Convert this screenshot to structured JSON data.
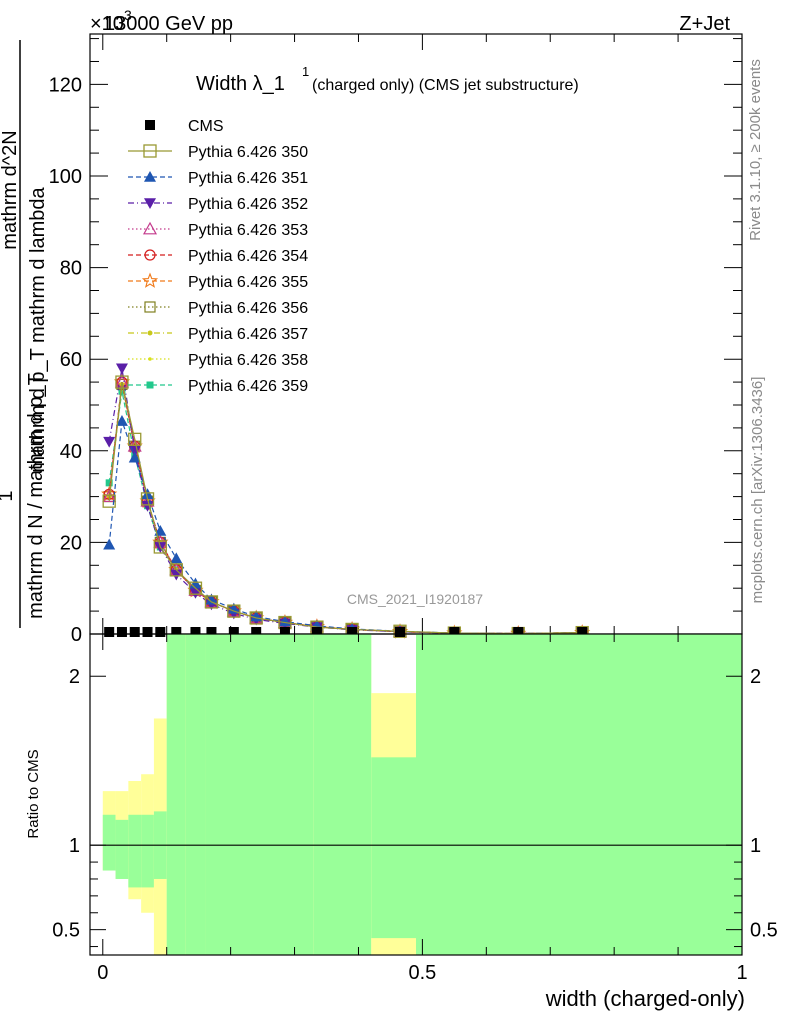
{
  "header": {
    "energy": "13000 GeV pp",
    "process": "Z+Jet",
    "exponent": "×10",
    "exponent_power": "3"
  },
  "side_labels": {
    "rivet": "Rivet 3.1.10, ≥ 200k events",
    "mcplots": "mcplots.cern.ch [arXiv:1306.3436]"
  },
  "watermark": "CMS_2021_I1920187",
  "colors": {
    "band_inner": "#99ff99",
    "band_outer": "#ffff99",
    "s350": "#999933",
    "s351": "#1f56b2",
    "s352": "#5a1fa8",
    "s353": "#c43a8c",
    "s354": "#d41f1f",
    "s355": "#f07a1a",
    "s356": "#808020",
    "s357": "#c8c81a",
    "s358": "#d8e01a",
    "s359": "#22c88c"
  },
  "chart_data": [
    {
      "type": "line",
      "title": "Width λ_1",
      "title_sup": "1",
      "title_suffix": "(charged only) (CMS jet substructure)",
      "ylabel": {
        "prefix": "1",
        "denominator": "mathrm d N / mathrm d p_T",
        "numerator": "mathrm d^2N",
        "denominator_suffix": "mathrm d p_T mathrm d lambda"
      },
      "xlim": [
        -0.02,
        1.0
      ],
      "ylim": [
        0,
        131
      ],
      "yticks": [
        0,
        20,
        40,
        60,
        80,
        100,
        120
      ],
      "y_scale_note": "values ×10^3 shown as displayed",
      "legend_position": "top-left",
      "x": [
        0.01,
        0.03,
        0.05,
        0.07,
        0.09,
        0.115,
        0.145,
        0.17,
        0.205,
        0.24,
        0.285,
        0.335,
        0.39,
        0.465,
        0.55,
        0.65,
        0.75
      ],
      "series": [
        {
          "name": "CMS",
          "marker": "square-filled",
          "color": "#000000",
          "values": [
            0.4,
            0.4,
            0.4,
            0.4,
            0.4,
            0.4,
            0.4,
            0.4,
            0.4,
            0.4,
            0.3,
            0.3,
            0.2,
            0.1,
            0.05,
            0.05,
            0.05
          ]
        },
        {
          "name": "Pythia 6.426 350",
          "marker": "square-open",
          "dash": "solid",
          "colorKey": "s350",
          "values": [
            29,
            55,
            42.5,
            29.5,
            19,
            14,
            10,
            7,
            5,
            3.5,
            2.5,
            1.5,
            1.0,
            0.6,
            0.2,
            0.1,
            0.3
          ]
        },
        {
          "name": "Pythia 6.426 351",
          "marker": "triangle-up-filled",
          "dash": "dash",
          "colorKey": "s351",
          "values": [
            19.5,
            46.5,
            38.5,
            30.5,
            22.5,
            16.5,
            11.0,
            7.5,
            5.5,
            3.8,
            2.7,
            1.8,
            1.1,
            0.6,
            0.2,
            0.1,
            0.3
          ]
        },
        {
          "name": "Pythia 6.426 352",
          "marker": "triangle-down-filled",
          "dash": "dashdot",
          "colorKey": "s352",
          "values": [
            42,
            58,
            40,
            28,
            19,
            13,
            9,
            6.5,
            4.5,
            3.2,
            2.3,
            1.5,
            0.9,
            0.5,
            0.2,
            0.1,
            0.3
          ]
        },
        {
          "name": "Pythia 6.426 353",
          "marker": "triangle-up-open",
          "dash": "dot",
          "colorKey": "s353",
          "values": [
            30,
            55,
            41,
            29,
            20,
            14,
            9.5,
            7,
            5,
            3.5,
            2.5,
            1.6,
            1.0,
            0.5,
            0.2,
            0.1,
            0.3
          ]
        },
        {
          "name": "Pythia 6.426 354",
          "marker": "circle-open",
          "dash": "dash",
          "colorKey": "s354",
          "values": [
            30.5,
            55,
            41,
            29,
            20,
            14,
            9.5,
            7,
            5,
            3.5,
            2.5,
            1.6,
            1.0,
            0.5,
            0.2,
            0.1,
            0.3
          ]
        },
        {
          "name": "Pythia 6.426 355",
          "marker": "star-open",
          "dash": "dash",
          "colorKey": "s355",
          "values": [
            30.5,
            55,
            41,
            29,
            20,
            14,
            9.5,
            7,
            5,
            3.5,
            2.5,
            1.6,
            1.0,
            0.5,
            0.2,
            0.1,
            0.3
          ]
        },
        {
          "name": "Pythia 6.426 356",
          "marker": "square-open-small",
          "dash": "dot",
          "colorKey": "s356",
          "values": [
            30,
            54.5,
            41,
            29,
            20,
            14,
            9.5,
            7,
            5,
            3.5,
            2.5,
            1.6,
            1.0,
            0.5,
            0.2,
            0.1,
            0.3
          ]
        },
        {
          "name": "Pythia 6.426 357",
          "marker": "dot",
          "dash": "dashdot",
          "colorKey": "s357",
          "values": [
            30,
            54.5,
            41,
            29,
            20,
            14,
            9.5,
            7,
            5,
            3.5,
            2.5,
            1.6,
            1.0,
            0.5,
            0.2,
            0.1,
            0.3
          ]
        },
        {
          "name": "Pythia 6.426 358",
          "marker": "dot-small",
          "dash": "dot",
          "colorKey": "s358",
          "values": [
            30,
            54.5,
            41,
            29,
            20,
            14,
            9.5,
            7,
            5,
            3.5,
            2.5,
            1.6,
            1.0,
            0.5,
            0.2,
            0.1,
            0.3
          ]
        },
        {
          "name": "Pythia 6.426 359",
          "marker": "square-filled-small",
          "dash": "dash",
          "colorKey": "s359",
          "values": [
            33,
            53,
            39,
            28,
            19,
            14,
            9.5,
            7,
            5,
            3.5,
            2.5,
            1.6,
            1.0,
            0.5,
            0.2,
            0.1,
            0.3
          ]
        }
      ]
    },
    {
      "type": "area",
      "ylabel": "Ratio to CMS",
      "xlabel": "width (charged-only)",
      "xlim": [
        -0.02,
        1.0
      ],
      "ylim": [
        0.35,
        2.25
      ],
      "yticks": [
        0.5,
        1,
        2
      ],
      "xticks": [
        0,
        0.5,
        1
      ],
      "reference_line": 1,
      "bins": [
        {
          "x0": 0.0,
          "x1": 0.02,
          "inner": [
            0.85,
            1.18
          ],
          "outer": [
            0.85,
            1.32
          ]
        },
        {
          "x0": 0.02,
          "x1": 0.04,
          "inner": [
            0.8,
            1.15
          ],
          "outer": [
            0.8,
            1.32
          ]
        },
        {
          "x0": 0.04,
          "x1": 0.06,
          "inner": [
            0.75,
            1.18
          ],
          "outer": [
            0.68,
            1.38
          ]
        },
        {
          "x0": 0.06,
          "x1": 0.08,
          "inner": [
            0.75,
            1.18
          ],
          "outer": [
            0.6,
            1.42
          ]
        },
        {
          "x0": 0.08,
          "x1": 0.1,
          "inner": [
            0.8,
            1.2
          ],
          "outer": [
            0.35,
            1.75
          ]
        },
        {
          "x0": 0.1,
          "x1": 0.13,
          "inner": [
            0.35,
            2.25
          ],
          "outer": [
            0.35,
            2.25
          ]
        },
        {
          "x0": 0.13,
          "x1": 0.16,
          "inner": [
            0.35,
            2.25
          ],
          "outer": [
            0.35,
            2.25
          ]
        },
        {
          "x0": 0.16,
          "x1": 0.33,
          "inner": [
            0.35,
            2.25
          ],
          "outer": [
            0.35,
            2.25
          ]
        },
        {
          "x0": 0.33,
          "x1": 0.42,
          "inner": [
            0.35,
            2.25
          ],
          "outer": [
            0.35,
            2.25
          ]
        },
        {
          "x0": 0.42,
          "x1": 0.49,
          "inner": [
            0.45,
            1.52
          ],
          "outer": [
            0.35,
            1.9
          ]
        },
        {
          "x0": 0.49,
          "x1": 1.0,
          "inner": [
            0.35,
            2.25
          ],
          "outer": [
            0.35,
            2.25
          ]
        }
      ]
    }
  ]
}
